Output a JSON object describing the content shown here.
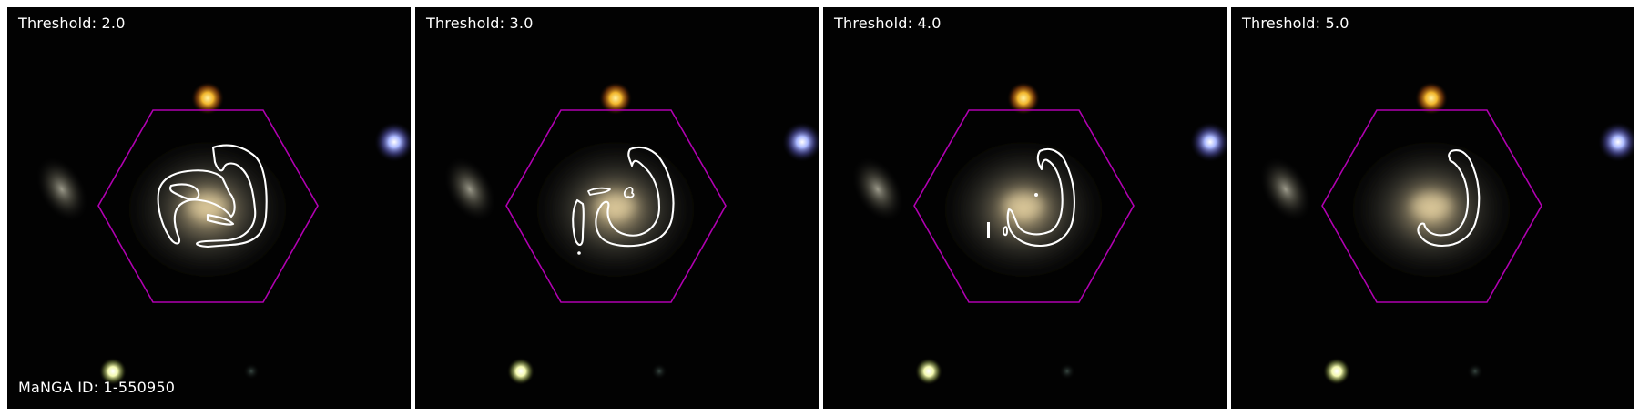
{
  "panels": [
    {
      "threshold_label": "Threshold: 2.0"
    },
    {
      "threshold_label": "Threshold: 3.0"
    },
    {
      "threshold_label": "Threshold: 4.0"
    },
    {
      "threshold_label": "Threshold: 5.0"
    }
  ],
  "manga_id_label": "MaNGA ID: 1-550950",
  "colors": {
    "sky_background": "#020202",
    "hexagon_outline": "#b000b0",
    "contour_line": "#ffffff",
    "galaxy_core": "#e8c88a",
    "star_orange": "#f2b72d",
    "star_blue": "#aab8ff",
    "star_yellow_green": "#f4f9b0",
    "panel_divider": "#ffffff",
    "label_text": "#ffffff"
  }
}
